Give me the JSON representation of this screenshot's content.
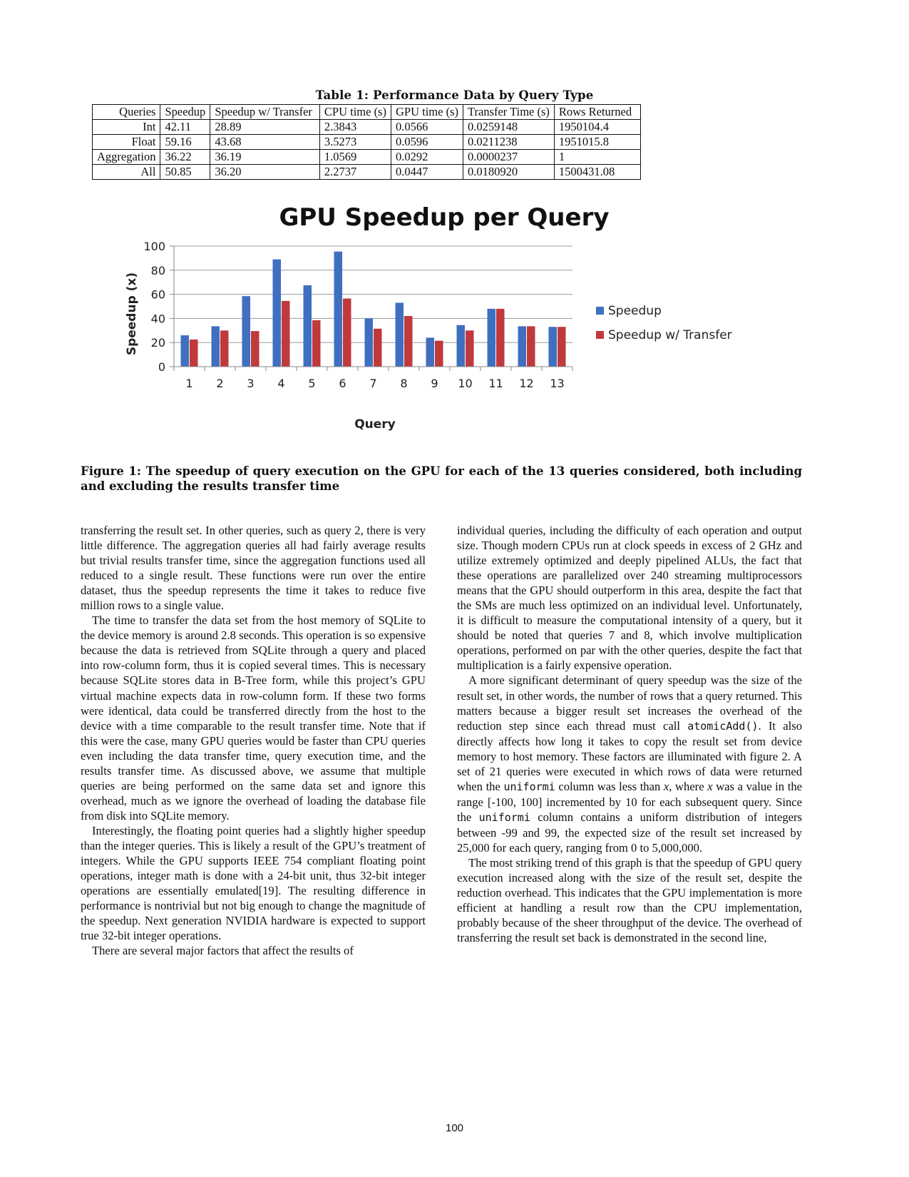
{
  "table": {
    "caption": "Table 1: Performance Data by Query Type",
    "headers": [
      "Queries",
      "Speedup",
      "Speedup w/ Transfer",
      "CPU time (s)",
      "GPU time (s)",
      "Transfer Time (s)",
      "Rows Returned"
    ],
    "rows": [
      [
        "Int",
        "42.11",
        "28.89",
        "2.3843",
        "0.0566",
        "0.0259148",
        "1950104.4"
      ],
      [
        "Float",
        "59.16",
        "43.68",
        "3.5273",
        "0.0596",
        "0.0211238",
        "1951015.8"
      ],
      [
        "Aggregation",
        "36.22",
        "36.19",
        "1.0569",
        "0.0292",
        "0.0000237",
        "1"
      ],
      [
        "All",
        "50.85",
        "36.20",
        "2.2737",
        "0.0447",
        "0.0180920",
        "1500431.08"
      ]
    ]
  },
  "chart_data": {
    "type": "bar",
    "title": "GPU Speedup per Query",
    "xlabel": "Query",
    "ylabel": "Speedup (x)",
    "categories": [
      "1",
      "2",
      "3",
      "4",
      "5",
      "6",
      "7",
      "8",
      "9",
      "10",
      "11",
      "12",
      "13"
    ],
    "series": [
      {
        "name": "Speedup",
        "color": "#3f6fbf",
        "values": [
          26,
          33.5,
          58.5,
          89,
          67.5,
          95.5,
          40,
          53,
          24,
          34.5,
          48,
          33.5,
          33
        ]
      },
      {
        "name": "Speedup w/ Transfer",
        "color": "#c0393b",
        "values": [
          22.5,
          30,
          29.5,
          54.5,
          38.5,
          56.5,
          31.5,
          42,
          21.5,
          30,
          48,
          33.5,
          33
        ]
      }
    ],
    "ylim": [
      0,
      100
    ],
    "yticks": [
      "0",
      "20",
      "40",
      "60",
      "80",
      "100"
    ],
    "grid": true,
    "legend": "right"
  },
  "figure": {
    "caption": "Figure 1: The speedup of query execution on the GPU for each of the 13 queries considered, both including and excluding the results transfer time"
  },
  "left_column": [
    "transferring the result set. In other queries, such as query 2, there is very little difference. The aggregation queries all had fairly average results but trivial results transfer time, since the aggregation functions used all reduced to a single result. These functions were run over the entire dataset, thus the speedup represents the time it takes to reduce five million rows to a single value.",
    "The time to transfer the data set from the host memory of SQLite to the device memory is around 2.8 seconds. This operation is so expensive because the data is retrieved from SQLite through a query and placed into row-column form, thus it is copied several times. This is necessary because SQLite stores data in B-Tree form, while this project’s GPU virtual machine expects data in row-column form. If these two forms were identical, data could be transferred directly from the host to the device with a time comparable to the result transfer time. Note that if this were the case, many GPU queries would be faster than CPU queries even including the data transfer time, query execution time, and the results transfer time. As discussed above, we assume that multiple queries are being performed on the same data set and ignore this overhead, much as we ignore the overhead of loading the database file from disk into SQLite memory.",
    "Interestingly, the floating point queries had a slightly higher speedup than the integer queries. This is likely a result of the GPU’s treatment of integers. While the GPU supports IEEE 754 compliant floating point operations, integer math is done with a 24-bit unit, thus 32-bit integer operations are essentially emulated[19]. The resulting difference in performance is nontrivial but not big enough to change the magnitude of the speedup. Next generation NVIDIA hardware is expected to support true 32-bit integer operations.",
    "There are several major factors that affect the results of"
  ],
  "right_column": {
    "p1": "individual queries, including the difficulty of each operation and output size. Though modern CPUs run at clock speeds in excess of 2 GHz and utilize extremely optimized and deeply pipelined ALUs, the fact that these operations are parallelized over 240 streaming multiprocessors means that the GPU should outperform in this area, despite the fact that the SMs are much less optimized on an individual level. Unfortunately, it is difficult to measure the computational intensity of a query, but it should be noted that queries 7 and 8, which involve multiplication operations, performed on par with the other queries, despite the fact that multiplication is a fairly expensive operation.",
    "p2_a": "A more significant determinant of query speedup was the size of the result set, in other words, the number of rows that a query returned. This matters because a bigger result set increases the overhead of the reduction step since each thread must call ",
    "p2_code1": "atomicAdd()",
    "p2_b": ". It also directly affects how long it takes to copy the result set from device memory to host memory. These factors are illuminated with figure 2. A set of 21 queries were executed in which rows of data were returned when the ",
    "p2_code2": "uniformi",
    "p2_c": " column was less than ",
    "p2_var1": "x",
    "p2_d": ", where ",
    "p2_var2": "x",
    "p2_e": " was a value in the range [-100, 100] incremented by 10 for each subsequent query. Since the ",
    "p2_code3": "uniformi",
    "p2_f": " column contains a uniform distribution of integers between -99 and 99, the expected size of the result set increased by 25,000 for each query, ranging from 0 to 5,000,000.",
    "p3": "The most striking trend of this graph is that the speedup of GPU query execution increased along with the size of the result set, despite the reduction overhead. This indicates that the GPU implementation is more efficient at handling a result row than the CPU implementation, probably because of the sheer throughput of the device. The overhead of transferring the result set back is demonstrated in the second line,"
  },
  "page_number": "100"
}
